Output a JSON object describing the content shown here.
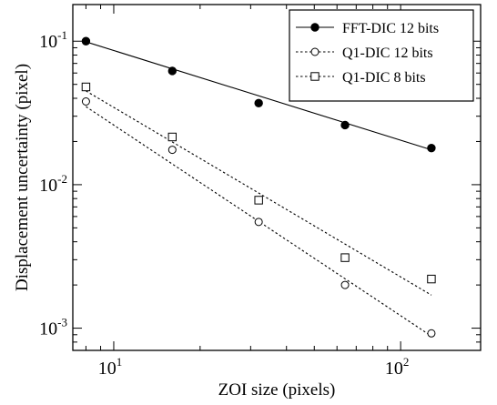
{
  "chart_data": {
    "type": "scatter",
    "xscale": "log",
    "yscale": "log",
    "xlabel": "ZOI size (pixels)",
    "ylabel": "Displacement uncertainty (pixel)",
    "xlim": [
      7.2,
      190
    ],
    "ylim": [
      0.0007,
      0.18
    ],
    "xticks": [
      {
        "value": 10,
        "base": "10",
        "exp": "1"
      },
      {
        "value": 100,
        "base": "10",
        "exp": "2"
      }
    ],
    "yticks": [
      {
        "value": 0.1,
        "base": "10",
        "exp": "-1"
      },
      {
        "value": 0.01,
        "base": "10",
        "exp": "-2"
      },
      {
        "value": 0.001,
        "base": "10",
        "exp": "-3"
      }
    ],
    "legend": {
      "position": "top-right"
    },
    "series": [
      {
        "name": "FFT-DIC 12 bits",
        "marker": "filled-circle",
        "line": "solid",
        "x": [
          8,
          16,
          32,
          64,
          128
        ],
        "y": [
          0.1,
          0.062,
          0.037,
          0.026,
          0.018
        ],
        "fit": {
          "x": [
            8,
            128
          ],
          "y": [
            0.099,
            0.0175
          ]
        }
      },
      {
        "name": "Q1-DIC 12 bits",
        "marker": "open-circle",
        "line": "dotted",
        "x": [
          8,
          16,
          32,
          64,
          128
        ],
        "y": [
          0.038,
          0.0175,
          0.0055,
          0.002,
          0.00092
        ],
        "fit": {
          "x": [
            8,
            128
          ],
          "y": [
            0.035,
            0.00088
          ]
        }
      },
      {
        "name": "Q1-DIC 8 bits",
        "marker": "open-square",
        "line": "dotted",
        "x": [
          8,
          16,
          32,
          64,
          128
        ],
        "y": [
          0.048,
          0.0215,
          0.0078,
          0.0031,
          0.0022
        ],
        "fit": {
          "x": [
            8,
            128
          ],
          "y": [
            0.045,
            0.0017
          ]
        }
      }
    ]
  }
}
